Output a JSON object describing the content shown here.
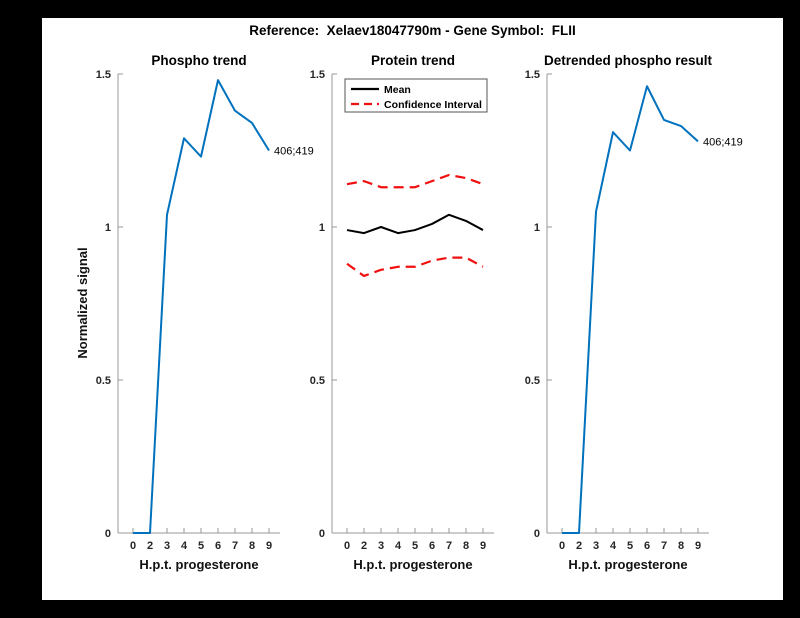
{
  "figure": {
    "frame_color": "#000000",
    "canvas_color": "#ffffff",
    "title": "Reference:  Xelaev18047790m - Gene Symbol:  FLII"
  },
  "colors": {
    "blue": "#0072BD",
    "red": "#f01010",
    "black": "#000000",
    "axis": "#999999",
    "tick_text": "#262626"
  },
  "chart_data": [
    {
      "type": "line",
      "title": "Phospho trend",
      "xlabel": "H.p.t. progesterone",
      "ylabel": "Normalized signal",
      "x_ticklabels": [
        "0",
        "2",
        "3",
        "4",
        "5",
        "6",
        "7",
        "8",
        "9"
      ],
      "y_ticks": [
        0,
        0.5,
        1,
        1.5
      ],
      "y_ticklabels": [
        "0",
        "0.5",
        "1",
        "1.5"
      ],
      "ylim": [
        0,
        1.5
      ],
      "grid": false,
      "series": [
        {
          "name": "phospho",
          "color": "blue",
          "style": "solid",
          "width": 2,
          "values": [
            0,
            0,
            1.04,
            1.29,
            1.23,
            1.48,
            1.38,
            1.34,
            1.25
          ]
        }
      ],
      "annotation": {
        "text": "406;419",
        "at_index": 8,
        "value": 1.25
      }
    },
    {
      "type": "line",
      "title": "Protein trend",
      "xlabel": "H.p.t. progesterone",
      "ylabel": "",
      "x_ticklabels": [
        "0",
        "2",
        "3",
        "4",
        "5",
        "6",
        "7",
        "8",
        "9"
      ],
      "y_ticks": [
        0,
        0.5,
        1,
        1.5
      ],
      "y_ticklabels": [
        "0",
        "0.5",
        "1",
        "1.5"
      ],
      "ylim": [
        0,
        1.5
      ],
      "grid": false,
      "legend": {
        "position": "top-inside",
        "entries": [
          {
            "label": "Mean",
            "color": "black",
            "style": "solid"
          },
          {
            "label": "Confidence Interval",
            "color": "red",
            "style": "dashed"
          }
        ]
      },
      "series": [
        {
          "name": "mean",
          "color": "black",
          "style": "solid",
          "width": 2,
          "values": [
            0.99,
            0.98,
            1.0,
            0.98,
            0.99,
            1.01,
            1.04,
            1.02,
            0.99
          ]
        },
        {
          "name": "ci-upper",
          "color": "red",
          "style": "dashed",
          "width": 2.2,
          "values": [
            1.14,
            1.15,
            1.13,
            1.13,
            1.13,
            1.15,
            1.17,
            1.16,
            1.14
          ]
        },
        {
          "name": "ci-lower",
          "color": "red",
          "style": "dashed",
          "width": 2.2,
          "values": [
            0.88,
            0.84,
            0.86,
            0.87,
            0.87,
            0.89,
            0.9,
            0.9,
            0.87
          ]
        }
      ]
    },
    {
      "type": "line",
      "title": "Detrended phospho result",
      "xlabel": "H.p.t. progesterone",
      "ylabel": "",
      "x_ticklabels": [
        "0",
        "2",
        "3",
        "4",
        "5",
        "6",
        "7",
        "8",
        "9"
      ],
      "y_ticks": [
        0,
        0.5,
        1,
        1.5
      ],
      "y_ticklabels": [
        "0",
        "0.5",
        "1",
        "1.5"
      ],
      "ylim": [
        0,
        1.5
      ],
      "grid": false,
      "series": [
        {
          "name": "detrended",
          "color": "blue",
          "style": "solid",
          "width": 2,
          "values": [
            0,
            0,
            1.05,
            1.31,
            1.25,
            1.46,
            1.35,
            1.33,
            1.28
          ]
        }
      ],
      "annotation": {
        "text": "406;419",
        "at_index": 8,
        "value": 1.28
      }
    }
  ]
}
